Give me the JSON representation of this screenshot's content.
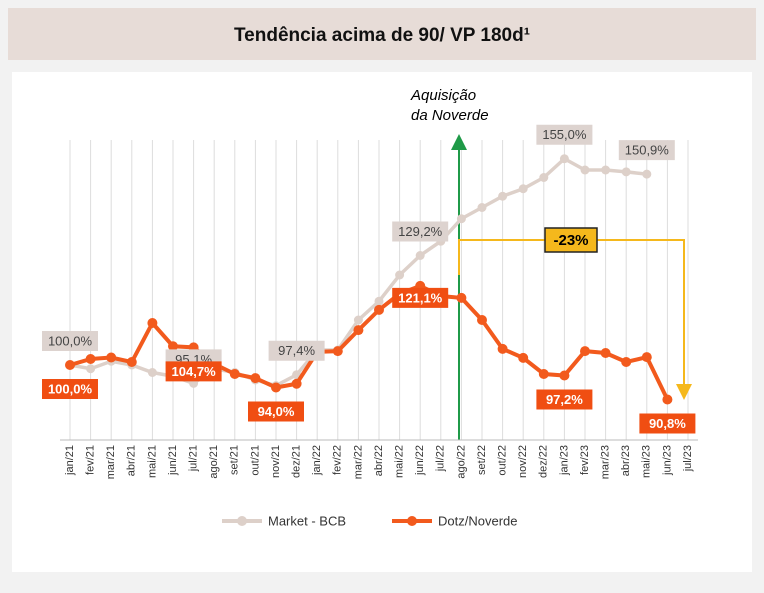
{
  "chart_data": {
    "type": "line",
    "title": "Tendência acima de 90/ VP 180d¹",
    "categories": [
      "jan/21",
      "fev/21",
      "mar/21",
      "abr/21",
      "mai/21",
      "jun/21",
      "jul/21",
      "ago/21",
      "set/21",
      "out/21",
      "nov/21",
      "dez/21",
      "jan/22",
      "fev/22",
      "mar/22",
      "abr/22",
      "mai/22",
      "jun/22",
      "jul/22",
      "ago/22",
      "set/22",
      "out/22",
      "nov/22",
      "dez/22",
      "jan/23",
      "fev/23",
      "mar/23",
      "abr/23",
      "mai/23",
      "jun/23",
      "jul/23"
    ],
    "series": [
      {
        "name": "Market - BCB",
        "color": "#ddd0c9",
        "values": [
          100.0,
          99,
          101,
          100,
          98,
          97,
          95.1,
          99,
          98,
          96,
          94.5,
          97.4,
          104,
          104,
          112,
          117,
          124,
          129.2,
          133,
          139,
          142,
          145,
          147,
          150,
          155.0,
          152,
          152,
          151.5,
          150.9,
          null,
          null
        ],
        "value_labels": [
          "100,0%",
          null,
          null,
          null,
          null,
          null,
          "95,1%",
          null,
          null,
          null,
          null,
          "97,4%",
          null,
          null,
          null,
          null,
          null,
          "129,2%",
          null,
          null,
          null,
          null,
          null,
          null,
          "155,0%",
          null,
          null,
          null,
          "150,9%",
          null,
          null
        ]
      },
      {
        "name": "Dotz/Noverde",
        "color": "#f25a1d",
        "values": [
          100.0,
          101.6,
          102,
          100.8,
          111.2,
          105,
          104.7,
          100.3,
          97.6,
          96.5,
          94.0,
          95,
          103.5,
          103.7,
          109.3,
          114.7,
          119,
          121.1,
          118.4,
          117.9,
          112,
          104.3,
          101.9,
          97.6,
          97.2,
          103.7,
          103.2,
          100.8,
          102.1,
          90.8,
          null
        ],
        "value_labels": [
          "100,0%",
          null,
          null,
          null,
          null,
          null,
          "104,7%",
          null,
          null,
          null,
          "94,0%",
          null,
          null,
          null,
          null,
          null,
          null,
          "121,1%",
          null,
          null,
          null,
          null,
          null,
          null,
          "97,2%",
          null,
          null,
          null,
          null,
          "90,8%",
          null
        ]
      }
    ],
    "annotations": [
      "Aquisição",
      "da Noverde",
      "-23%"
    ],
    "ylim": [
      80,
      160
    ],
    "grid": true,
    "legend": "bottom"
  }
}
